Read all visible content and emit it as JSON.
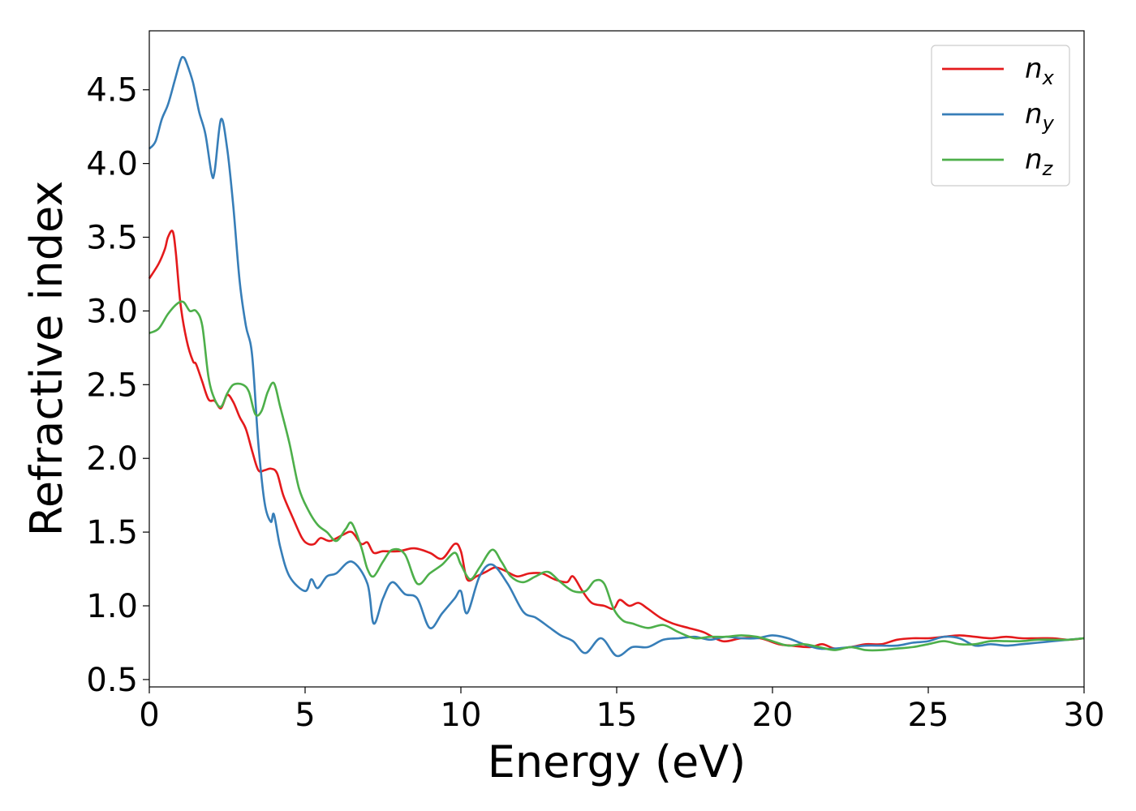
{
  "chart_data": {
    "type": "line",
    "title": "",
    "xlabel": "Energy (eV)",
    "ylabel": "Refractive index",
    "xlim": [
      0,
      30
    ],
    "ylim": [
      0.45,
      4.9
    ],
    "xticks": [
      "0",
      "5",
      "10",
      "15",
      "20",
      "25",
      "30"
    ],
    "yticks": [
      "0.5",
      "1.0",
      "1.5",
      "2.0",
      "2.5",
      "3.0",
      "3.5",
      "4.0",
      "4.5"
    ],
    "grid": false,
    "legend_position": "top-right",
    "series": [
      {
        "name": "n_x",
        "label_base": "n",
        "label_sub": "x",
        "color": "#e41a1c",
        "x": [
          0,
          0.3,
          0.5,
          0.6,
          0.75,
          0.85,
          1.0,
          1.2,
          1.4,
          1.5,
          1.7,
          1.9,
          2.1,
          2.3,
          2.5,
          2.7,
          2.9,
          3.1,
          3.3,
          3.5,
          3.7,
          3.9,
          4.1,
          4.3,
          4.6,
          4.9,
          5.1,
          5.3,
          5.5,
          5.8,
          6.2,
          6.5,
          6.8,
          7.0,
          7.2,
          7.5,
          8.0,
          8.5,
          9.0,
          9.4,
          9.8,
          10.0,
          10.2,
          10.5,
          10.8,
          11.1,
          11.4,
          11.8,
          12.2,
          12.6,
          13.0,
          13.4,
          13.6,
          13.9,
          14.2,
          14.6,
          14.9,
          15.1,
          15.4,
          15.7,
          16.0,
          16.4,
          16.8,
          17.3,
          17.8,
          18.4,
          19.0,
          19.6,
          20.2,
          20.6,
          21.2,
          21.6,
          22.0,
          22.5,
          23.0,
          23.5,
          24.0,
          24.5,
          25.0,
          25.5,
          26.0,
          26.5,
          27.0,
          27.5,
          28.0,
          28.5,
          29.0,
          29.5,
          30.0
        ],
        "values": [
          3.22,
          3.32,
          3.42,
          3.5,
          3.54,
          3.4,
          3.05,
          2.8,
          2.66,
          2.64,
          2.52,
          2.4,
          2.39,
          2.34,
          2.43,
          2.38,
          2.28,
          2.2,
          2.05,
          1.92,
          1.92,
          1.93,
          1.9,
          1.75,
          1.6,
          1.46,
          1.42,
          1.42,
          1.46,
          1.44,
          1.48,
          1.5,
          1.42,
          1.43,
          1.36,
          1.37,
          1.37,
          1.39,
          1.36,
          1.32,
          1.42,
          1.37,
          1.18,
          1.2,
          1.23,
          1.26,
          1.24,
          1.2,
          1.22,
          1.22,
          1.18,
          1.16,
          1.2,
          1.1,
          1.02,
          1.0,
          0.98,
          1.04,
          1.0,
          1.02,
          0.98,
          0.92,
          0.88,
          0.85,
          0.82,
          0.76,
          0.78,
          0.78,
          0.74,
          0.73,
          0.72,
          0.74,
          0.71,
          0.72,
          0.74,
          0.74,
          0.77,
          0.78,
          0.78,
          0.79,
          0.8,
          0.79,
          0.78,
          0.79,
          0.78,
          0.78,
          0.78,
          0.77,
          0.78
        ]
      },
      {
        "name": "n_y",
        "label_base": "n",
        "label_sub": "y",
        "color": "#377eb8",
        "x": [
          0,
          0.2,
          0.4,
          0.6,
          0.8,
          1.0,
          1.1,
          1.2,
          1.4,
          1.6,
          1.8,
          2.0,
          2.1,
          2.3,
          2.5,
          2.7,
          2.9,
          3.1,
          3.3,
          3.5,
          3.7,
          3.9,
          4.0,
          4.2,
          4.5,
          5.0,
          5.2,
          5.4,
          5.7,
          6.0,
          6.5,
          7.0,
          7.2,
          7.5,
          7.8,
          8.2,
          8.6,
          9.0,
          9.4,
          9.8,
          10.0,
          10.2,
          10.6,
          11.0,
          11.5,
          12.0,
          12.4,
          12.8,
          13.2,
          13.6,
          14.0,
          14.5,
          15.0,
          15.5,
          16.0,
          16.5,
          17.0,
          17.5,
          18.0,
          18.5,
          19.0,
          19.5,
          20.0,
          20.5,
          21.0,
          21.5,
          22.0,
          22.5,
          23.0,
          23.5,
          24.0,
          24.5,
          25.0,
          25.5,
          26.0,
          26.5,
          27.0,
          27.5,
          28.0,
          28.5,
          29.0,
          29.5,
          30.0
        ],
        "values": [
          4.1,
          4.15,
          4.3,
          4.4,
          4.55,
          4.7,
          4.72,
          4.68,
          4.55,
          4.35,
          4.2,
          3.93,
          3.95,
          4.3,
          4.1,
          3.7,
          3.2,
          2.9,
          2.7,
          2.1,
          1.7,
          1.57,
          1.62,
          1.4,
          1.2,
          1.1,
          1.18,
          1.12,
          1.2,
          1.22,
          1.3,
          1.15,
          0.88,
          1.05,
          1.16,
          1.08,
          1.05,
          0.85,
          0.95,
          1.05,
          1.1,
          0.95,
          1.2,
          1.28,
          1.15,
          0.96,
          0.92,
          0.86,
          0.8,
          0.76,
          0.68,
          0.78,
          0.66,
          0.72,
          0.72,
          0.77,
          0.78,
          0.79,
          0.77,
          0.79,
          0.78,
          0.78,
          0.8,
          0.78,
          0.74,
          0.71,
          0.71,
          0.72,
          0.73,
          0.73,
          0.73,
          0.75,
          0.76,
          0.79,
          0.78,
          0.73,
          0.74,
          0.73,
          0.74,
          0.75,
          0.76,
          0.77,
          0.78
        ]
      },
      {
        "name": "n_z",
        "label_base": "n",
        "label_sub": "z",
        "color": "#4daf4a",
        "x": [
          0,
          0.3,
          0.6,
          0.9,
          1.1,
          1.3,
          1.5,
          1.7,
          1.9,
          2.1,
          2.3,
          2.5,
          2.7,
          3.0,
          3.2,
          3.4,
          3.6,
          3.8,
          4.0,
          4.2,
          4.5,
          4.8,
          5.1,
          5.4,
          5.7,
          6.0,
          6.3,
          6.5,
          6.8,
          7.0,
          7.2,
          7.5,
          7.8,
          8.2,
          8.6,
          9.0,
          9.4,
          9.8,
          10.0,
          10.3,
          10.6,
          11.0,
          11.3,
          11.6,
          12.0,
          12.4,
          12.8,
          13.2,
          13.6,
          14.0,
          14.3,
          14.6,
          14.9,
          15.2,
          15.5,
          16.0,
          16.5,
          17.0,
          17.5,
          18.0,
          18.5,
          19.0,
          19.5,
          20.0,
          20.5,
          21.0,
          21.5,
          22.0,
          22.5,
          23.0,
          23.5,
          24.0,
          24.5,
          25.0,
          25.5,
          26.0,
          26.5,
          27.0,
          27.5,
          28.0,
          28.5,
          29.0,
          29.5,
          30.0
        ],
        "values": [
          2.85,
          2.88,
          2.98,
          3.05,
          3.06,
          3.0,
          3.0,
          2.9,
          2.55,
          2.4,
          2.35,
          2.44,
          2.5,
          2.5,
          2.45,
          2.3,
          2.32,
          2.45,
          2.51,
          2.35,
          2.1,
          1.8,
          1.65,
          1.55,
          1.5,
          1.44,
          1.52,
          1.56,
          1.4,
          1.25,
          1.2,
          1.3,
          1.38,
          1.35,
          1.15,
          1.22,
          1.28,
          1.36,
          1.28,
          1.18,
          1.26,
          1.38,
          1.3,
          1.2,
          1.16,
          1.2,
          1.23,
          1.16,
          1.1,
          1.1,
          1.17,
          1.15,
          0.98,
          0.9,
          0.88,
          0.85,
          0.87,
          0.82,
          0.78,
          0.79,
          0.79,
          0.8,
          0.79,
          0.76,
          0.73,
          0.74,
          0.72,
          0.7,
          0.72,
          0.7,
          0.7,
          0.71,
          0.72,
          0.74,
          0.76,
          0.74,
          0.74,
          0.76,
          0.76,
          0.76,
          0.77,
          0.77,
          0.77,
          0.78
        ]
      }
    ]
  }
}
